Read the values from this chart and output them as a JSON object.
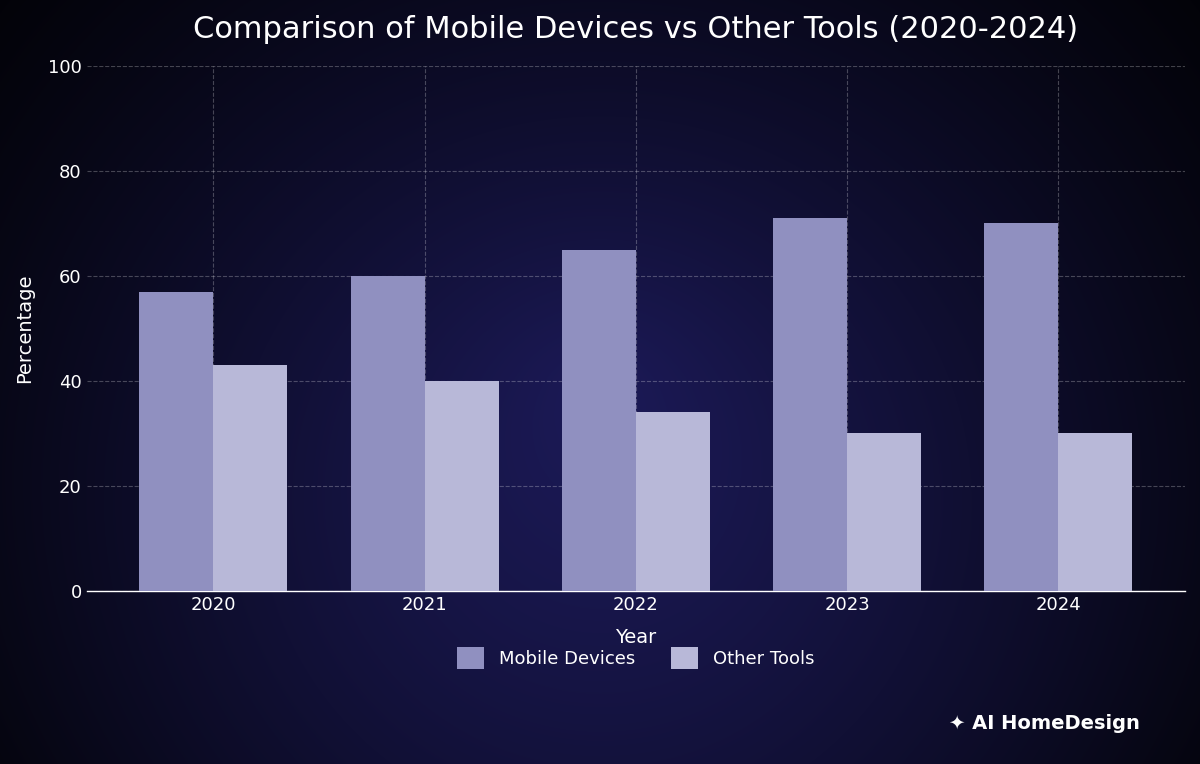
{
  "title": "Comparison of Mobile Devices vs Other Tools (2020-2024)",
  "xlabel": "Year",
  "ylabel": "Percentage",
  "years": [
    2020,
    2021,
    2022,
    2023,
    2024
  ],
  "mobile_devices": [
    57,
    60,
    65,
    71,
    70
  ],
  "other_tools": [
    43,
    40,
    34,
    30,
    30
  ],
  "mobile_color": "#9090c0",
  "other_color": "#b8b8d8",
  "fig_bg_color": "#0d0d1e",
  "axes_bg_color": "#1e2060",
  "text_color": "#ffffff",
  "grid_color": "#ffffff",
  "ylim": [
    0,
    100
  ],
  "yticks": [
    0,
    20,
    40,
    60,
    80,
    100
  ],
  "bar_width": 0.35,
  "legend_labels": [
    "Mobile Devices",
    "Other Tools"
  ],
  "title_fontsize": 22,
  "axis_label_fontsize": 14,
  "tick_fontsize": 13,
  "legend_fontsize": 13
}
